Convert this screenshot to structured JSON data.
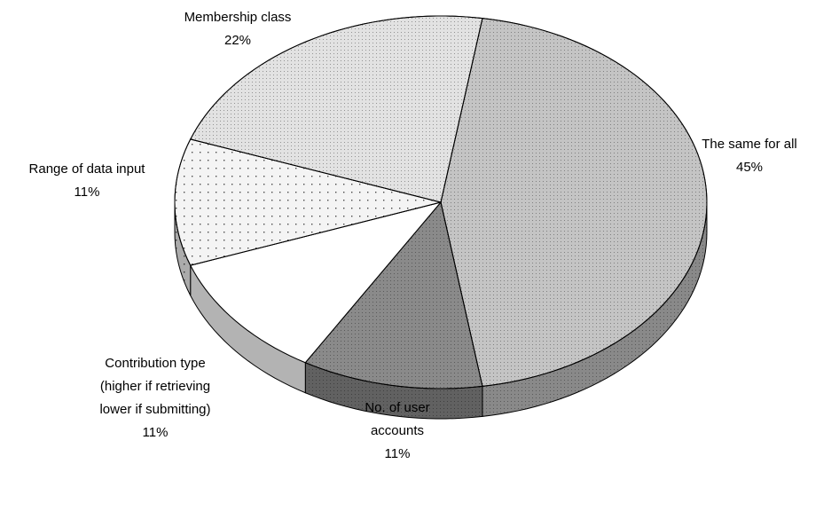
{
  "chart_data": {
    "type": "pie",
    "categories": [
      [
        "The same for all"
      ],
      [
        "No. of user",
        "accounts"
      ],
      [
        "Contribution type",
        "(higher if retrieving",
        "lower if submitting)"
      ],
      [
        "Range of data input"
      ],
      [
        "Membership class"
      ]
    ],
    "values": [
      45,
      11,
      11,
      11,
      22
    ],
    "value_labels": [
      "45%",
      "11%",
      "11%",
      "11%",
      "22%"
    ],
    "colors": [
      "#c4c4c4",
      "#8a8a8a",
      "#ffffff",
      "#f4f4f4",
      "#e2e2e2"
    ],
    "three_d": true
  }
}
